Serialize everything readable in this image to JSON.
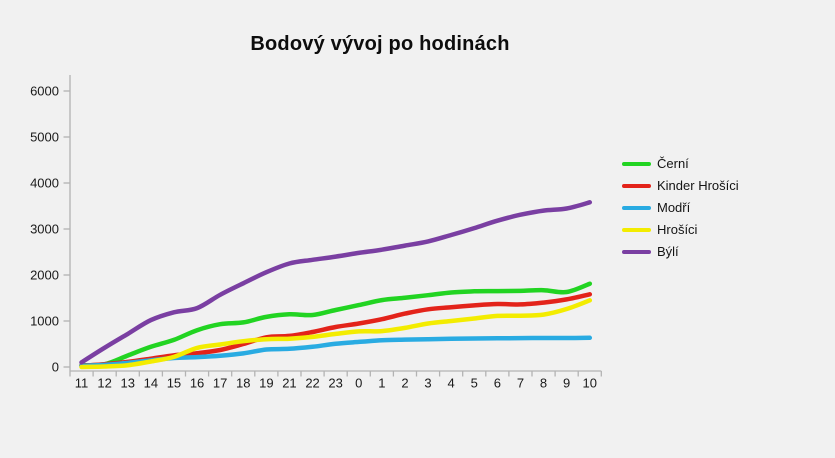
{
  "title": "Bodový vývoj po hodinách",
  "colors": {
    "background": "#f1f1f1",
    "axis": "#b3b3b3",
    "tick_text": "#1a1a1a"
  },
  "chart_data": {
    "type": "line",
    "title": "Bodový vývoj po hodinách",
    "xlabel": "",
    "ylabel": "",
    "x_categories": [
      "11",
      "12",
      "13",
      "14",
      "15",
      "16",
      "17",
      "18",
      "19",
      "21",
      "22",
      "23",
      "0",
      "1",
      "2",
      "3",
      "4",
      "5",
      "6",
      "7",
      "8",
      "9",
      "10"
    ],
    "y_ticks": [
      0,
      1000,
      2000,
      3000,
      4000,
      5000,
      6000
    ],
    "ylim": [
      0,
      6000
    ],
    "grid": false,
    "legend_position": "right",
    "line_width": 4.5,
    "smooth": true,
    "series": [
      {
        "name": "Černí",
        "color": "#22d422",
        "values": [
          40,
          60,
          250,
          440,
          590,
          800,
          930,
          970,
          1090,
          1145,
          1130,
          1240,
          1345,
          1455,
          1505,
          1560,
          1620,
          1645,
          1650,
          1655,
          1670,
          1630,
          1810
        ]
      },
      {
        "name": "Kinder Hrošíci",
        "color": "#e3231a",
        "values": [
          30,
          60,
          110,
          180,
          255,
          300,
          370,
          500,
          645,
          675,
          760,
          870,
          945,
          1040,
          1160,
          1255,
          1300,
          1340,
          1370,
          1360,
          1400,
          1470,
          1580
        ]
      },
      {
        "name": "Modří",
        "color": "#29abe2",
        "values": [
          25,
          45,
          90,
          145,
          195,
          215,
          245,
          295,
          380,
          395,
          440,
          505,
          545,
          580,
          595,
          605,
          615,
          620,
          625,
          628,
          630,
          630,
          635
        ]
      },
      {
        "name": "Hrošíci",
        "color": "#f3ec00",
        "values": [
          0,
          10,
          40,
          120,
          220,
          415,
          490,
          560,
          605,
          615,
          655,
          720,
          775,
          780,
          850,
          945,
          1000,
          1055,
          1110,
          1115,
          1140,
          1260,
          1450
        ]
      },
      {
        "name": "Býlí",
        "color": "#7a3fa2",
        "values": [
          100,
          420,
          720,
          1020,
          1190,
          1280,
          1570,
          1820,
          2060,
          2250,
          2330,
          2400,
          2480,
          2550,
          2640,
          2730,
          2870,
          3020,
          3180,
          3310,
          3400,
          3445,
          3580
        ]
      }
    ]
  }
}
